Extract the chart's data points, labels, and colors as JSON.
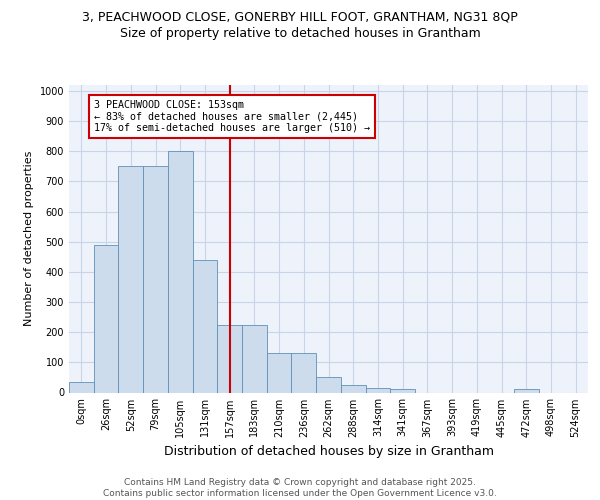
{
  "title_line1": "3, PEACHWOOD CLOSE, GONERBY HILL FOOT, GRANTHAM, NG31 8QP",
  "title_line2": "Size of property relative to detached houses in Grantham",
  "xlabel": "Distribution of detached houses by size in Grantham",
  "ylabel": "Number of detached properties",
  "bin_labels": [
    "0sqm",
    "26sqm",
    "52sqm",
    "79sqm",
    "105sqm",
    "131sqm",
    "157sqm",
    "183sqm",
    "210sqm",
    "236sqm",
    "262sqm",
    "288sqm",
    "314sqm",
    "341sqm",
    "367sqm",
    "393sqm",
    "419sqm",
    "445sqm",
    "472sqm",
    "498sqm",
    "524sqm"
  ],
  "bar_values": [
    35,
    490,
    750,
    750,
    800,
    440,
    225,
    225,
    130,
    130,
    50,
    25,
    15,
    10,
    0,
    0,
    0,
    0,
    10,
    0,
    0
  ],
  "bar_color": "#ccdcec",
  "bar_edge_color": "#6090b8",
  "vline_x": 6,
  "vline_color": "#cc0000",
  "annotation_box_text": "3 PEACHWOOD CLOSE: 153sqm\n← 83% of detached houses are smaller (2,445)\n17% of semi-detached houses are larger (510) →",
  "annotation_box_color": "#cc0000",
  "annotation_box_fill": "#ffffff",
  "ylim": [
    0,
    1020
  ],
  "yticks": [
    0,
    100,
    200,
    300,
    400,
    500,
    600,
    700,
    800,
    900,
    1000
  ],
  "grid_color": "#c8d4e8",
  "background_color": "#eef2fb",
  "footer_text": "Contains HM Land Registry data © Crown copyright and database right 2025.\nContains public sector information licensed under the Open Government Licence v3.0.",
  "title_fontsize": 9,
  "subtitle_fontsize": 9,
  "tick_fontsize": 7,
  "ylabel_fontsize": 8,
  "xlabel_fontsize": 9,
  "footer_fontsize": 6.5
}
